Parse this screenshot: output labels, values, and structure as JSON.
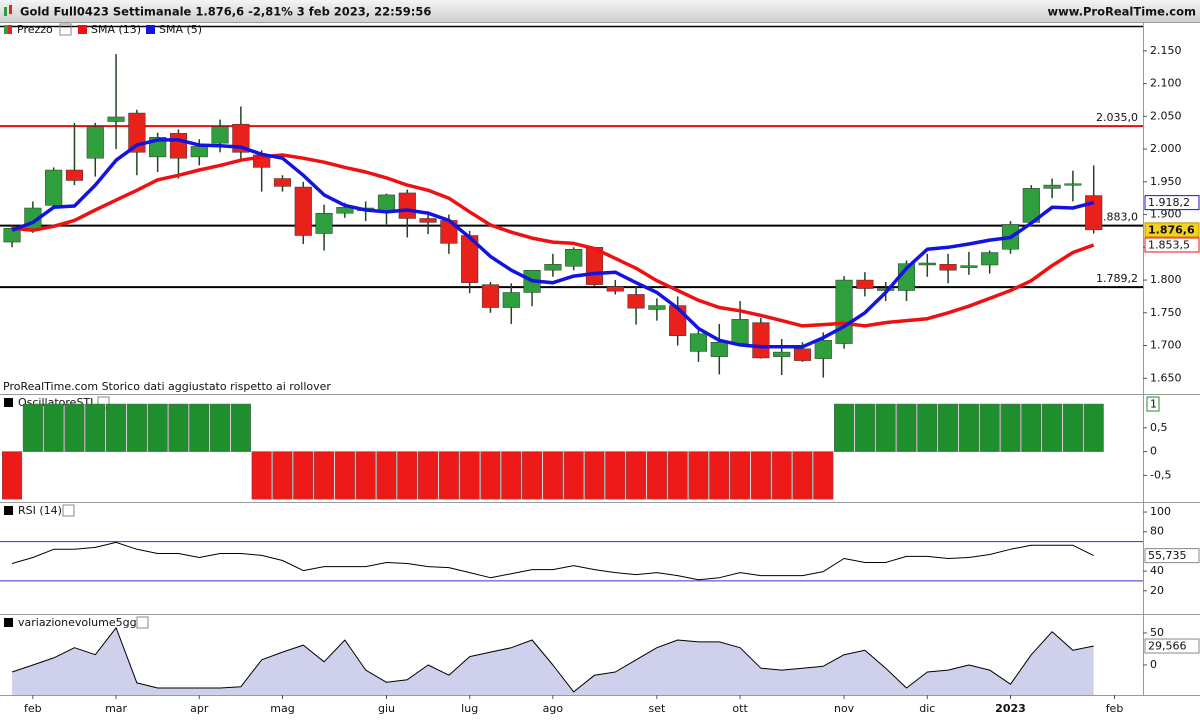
{
  "chart_data": [
    {
      "type": "candlestick",
      "title": "Gold Full0423 Settimanale 1.876,6 -2,81% 3 feb 2023, 22:59:56",
      "site": "www.ProRealTime.com",
      "note": "ProRealTime.com Storico dati aggiustato rispetto ai rollover",
      "xlim": [
        -0.58,
        54.37
      ],
      "ylim": [
        1626,
        2194
      ],
      "yticks": [
        {
          "value": 1650,
          "label": "1.650"
        },
        {
          "value": 1700,
          "label": "1.700"
        },
        {
          "value": 1750,
          "label": "1.750"
        },
        {
          "value": 1800,
          "label": "1.800"
        },
        {
          "value": 1850,
          "label": "1.850"
        },
        {
          "value": 1900,
          "label": "1.900"
        },
        {
          "value": 1950,
          "label": "1.950"
        },
        {
          "value": 2000,
          "label": "2.000"
        },
        {
          "value": 2050,
          "label": "2.050"
        },
        {
          "value": 2100,
          "label": "2.100"
        },
        {
          "value": 2150,
          "label": "2.150"
        }
      ],
      "series": [
        {
          "name": "Prezzo",
          "up_color": "#2f9e3c",
          "down_color": "#e8211b",
          "open": [
            1858,
            1876,
            1914,
            1968,
            1986,
            2042,
            2055,
            1988,
            2024,
            1988,
            2009,
            2038,
            1991,
            1955,
            1942,
            1871,
            1902,
            1906,
            1904,
            1933,
            1894,
            1891,
            1868,
            1793,
            1758,
            1781,
            1815,
            1821,
            1850,
            1790,
            1778,
            1755,
            1761,
            1691,
            1683,
            1703,
            1735,
            1683,
            1695,
            1680,
            1703,
            1800,
            1784,
            1784,
            1823,
            1824,
            1819,
            1823,
            1847,
            1888,
            1940,
            1945,
            1929
          ],
          "high": [
            1884,
            1920,
            1972,
            2040,
            2040,
            2145,
            2060,
            2025,
            2030,
            2015,
            2045,
            2065,
            1998,
            1960,
            1950,
            1915,
            1918,
            1920,
            1932,
            1938,
            1905,
            1900,
            1875,
            1797,
            1795,
            1815,
            1840,
            1850,
            1850,
            1800,
            1790,
            1772,
            1775,
            1725,
            1733,
            1768,
            1742,
            1710,
            1705,
            1720,
            1806,
            1812,
            1797,
            1830,
            1840,
            1840,
            1843,
            1845,
            1890,
            1945,
            1955,
            1967,
            1975
          ],
          "low": [
            1850,
            1872,
            1908,
            1945,
            1958,
            2000,
            1960,
            1965,
            1955,
            1975,
            1995,
            1985,
            1935,
            1935,
            1855,
            1845,
            1895,
            1890,
            1885,
            1865,
            1870,
            1840,
            1780,
            1750,
            1733,
            1760,
            1805,
            1815,
            1790,
            1778,
            1732,
            1738,
            1700,
            1675,
            1656,
            1700,
            1680,
            1655,
            1675,
            1651,
            1695,
            1775,
            1768,
            1768,
            1805,
            1795,
            1808,
            1810,
            1840,
            1882,
            1925,
            1920,
            1871
          ],
          "close": [
            1879,
            1910,
            1968,
            1952,
            2034,
            2049,
            1995,
            2018,
            1986,
            2004,
            2034,
            1995,
            1972,
            1943,
            1868,
            1902,
            1911,
            1910,
            1930,
            1894,
            1888,
            1856,
            1796,
            1758,
            1781,
            1815,
            1824,
            1847,
            1793,
            1783,
            1757,
            1761,
            1715,
            1718,
            1705,
            1740,
            1681,
            1690,
            1677,
            1708,
            1800,
            1787,
            1787,
            1825,
            1826,
            1815,
            1822,
            1842,
            1885,
            1940,
            1945,
            1947,
            1876.6
          ],
          "close_label": "1.876,6"
        },
        {
          "name": "SMA (13)",
          "type": "line",
          "color": "#ee1111",
          "values": [
            1879,
            1876,
            1882,
            1891,
            1907,
            1922,
            1937,
            1953,
            1960,
            1968,
            1975,
            1983,
            1988,
            1991,
            1986,
            1980,
            1972,
            1965,
            1956,
            1945,
            1937,
            1925,
            1904,
            1884,
            1873,
            1864,
            1858,
            1856,
            1848,
            1833,
            1818,
            1799,
            1784,
            1769,
            1758,
            1753,
            1746,
            1738,
            1730,
            1732,
            1734,
            1730,
            1735,
            1738,
            1741,
            1750,
            1760,
            1772,
            1784,
            1799,
            1822,
            1842,
            1853.5
          ],
          "last_label": "1.853,5"
        },
        {
          "name": "SMA (5)",
          "type": "line",
          "color": "#1414e0",
          "values": [
            1876,
            1888,
            1911,
            1913,
            1945,
            1983,
            2006,
            2014,
            2014,
            2006,
            2005,
            2003,
            1992,
            1986,
            1960,
            1930,
            1914,
            1907,
            1904,
            1907,
            1902,
            1891,
            1865,
            1836,
            1815,
            1799,
            1796,
            1806,
            1810,
            1812,
            1796,
            1781,
            1757,
            1726,
            1708,
            1701,
            1698,
            1698,
            1698,
            1712,
            1729,
            1750,
            1781,
            1818,
            1847,
            1850,
            1855,
            1861,
            1865,
            1887,
            1911,
            1910,
            1918.2
          ],
          "last_label": "1.918,2"
        }
      ],
      "hlines": [
        {
          "value": 2035,
          "label": "2.035,0",
          "color": "#e01010"
        },
        {
          "value": 1883,
          "label": "1.883,0",
          "color": "#000000"
        },
        {
          "value": 1789.2,
          "label": "1.789,2",
          "color": "#000000"
        }
      ]
    },
    {
      "type": "bar",
      "title": "OscillatoreSTI",
      "up_color": "#1f8f2e",
      "down_color": "#ee1a1a",
      "ylim": [
        -1.06,
        1.19
      ],
      "yticks": [
        {
          "value": 0.5,
          "label": "0,5"
        },
        0,
        {
          "value": -0.5,
          "label": "-0,5"
        }
      ],
      "values": [
        -1,
        1,
        1,
        1,
        1,
        1,
        1,
        1,
        1,
        1,
        1,
        1,
        -1,
        -1,
        -1,
        -1,
        -1,
        -1,
        -1,
        -1,
        -1,
        -1,
        -1,
        -1,
        -1,
        -1,
        -1,
        -1,
        -1,
        -1,
        -1,
        -1,
        -1,
        -1,
        -1,
        -1,
        -1,
        -1,
        -1,
        -1,
        1,
        1,
        1,
        1,
        1,
        1,
        1,
        1,
        1,
        1,
        1,
        1,
        1
      ],
      "last_label": "1"
    },
    {
      "type": "line",
      "title": "RSI (14)",
      "color": "#000000",
      "hline_color": "#3535c8",
      "ylim": [
        -3.6,
        109.2
      ],
      "yticks": [
        100,
        80,
        40,
        20
      ],
      "hlines": [
        {
          "value": 70
        },
        {
          "value": 30
        }
      ],
      "values": [
        47.7,
        53.8,
        62.1,
        62.1,
        64.1,
        69.2,
        62.1,
        57.9,
        57.9,
        53.8,
        57.9,
        57.9,
        55.9,
        50.8,
        40.5,
        44.6,
        44.6,
        44.6,
        48.7,
        47.7,
        44.6,
        43.6,
        38.5,
        33.3,
        37.4,
        41.5,
        41.5,
        45.6,
        41.5,
        38.5,
        36.4,
        38.5,
        35.4,
        31.3,
        33.3,
        38.5,
        35.4,
        35.4,
        35.4,
        39.5,
        52.8,
        48.7,
        48.7,
        54.9,
        54.9,
        52.8,
        53.8,
        56.9,
        62.1,
        66.2,
        66.2,
        66.2,
        55.735
      ],
      "last_label": "55,735"
    },
    {
      "type": "area",
      "title": "variazionevolume5gg",
      "color": "#000000",
      "fill": "#cfd0ec",
      "ylim": [
        -46.9,
        78
      ],
      "yticks": [
        50,
        0
      ],
      "values": [
        -11,
        0,
        11,
        27,
        16,
        58,
        -28,
        -36,
        -36,
        -36,
        -36,
        -34,
        8,
        20,
        31,
        5,
        39,
        -8,
        -27,
        -23,
        0,
        -16,
        13,
        20,
        27,
        39,
        0,
        -42,
        -16,
        -11,
        8,
        27,
        39,
        36,
        36,
        27,
        -5,
        -8,
        -5,
        -2,
        16,
        23,
        -5,
        -36,
        -11,
        -8,
        0,
        -8,
        -30,
        16,
        52,
        23,
        29.566
      ],
      "last_label": "29,566",
      "xticks": [
        {
          "value": 1,
          "label": "feb"
        },
        {
          "value": 5,
          "label": "mar"
        },
        {
          "value": 9,
          "label": "apr"
        },
        {
          "value": 13,
          "label": "mag"
        },
        {
          "value": 18,
          "label": "giu"
        },
        {
          "value": 22,
          "label": "lug"
        },
        {
          "value": 26,
          "label": "ago"
        },
        {
          "value": 31,
          "label": "set"
        },
        {
          "value": 35,
          "label": "ott"
        },
        {
          "value": 40,
          "label": "nov"
        },
        {
          "value": 44,
          "label": "dic"
        },
        {
          "value": 48,
          "label": "2023",
          "bold": true
        },
        {
          "value": 53,
          "label": "feb"
        }
      ]
    }
  ]
}
